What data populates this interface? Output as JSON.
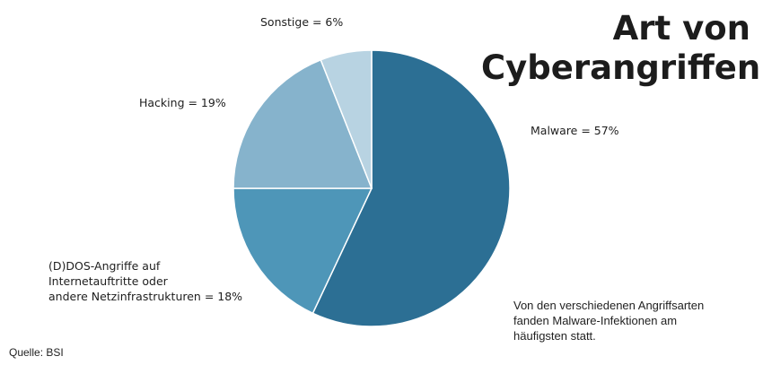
{
  "chart_data": {
    "type": "pie",
    "title_lines": [
      "Art von",
      "Cyberangriffen"
    ],
    "slices": [
      {
        "name": "Malware",
        "value": 57,
        "label": "Malware = 57%",
        "color": "#2c6f94"
      },
      {
        "name": "(D)DOS-Angriffe auf Internetauftritte oder andere Netzinfrastrukturen",
        "value": 18,
        "label_lines": [
          "(D)DOS-Angriffe auf",
          "Internetauftritte oder",
          "andere Netzinfrastrukturen = 18%"
        ],
        "color": "#4e96b8"
      },
      {
        "name": "Hacking",
        "value": 19,
        "label": "Hacking = 19%",
        "color": "#86b3cc"
      },
      {
        "name": "Sonstige",
        "value": 6,
        "label": "Sonstige = 6%",
        "color": "#b8d3e2"
      }
    ],
    "annotation": "Von den verschiedenen Angriffsarten fanden Malware-Infektionen am häufigsten statt."
  },
  "source": "Quelle: BSI"
}
